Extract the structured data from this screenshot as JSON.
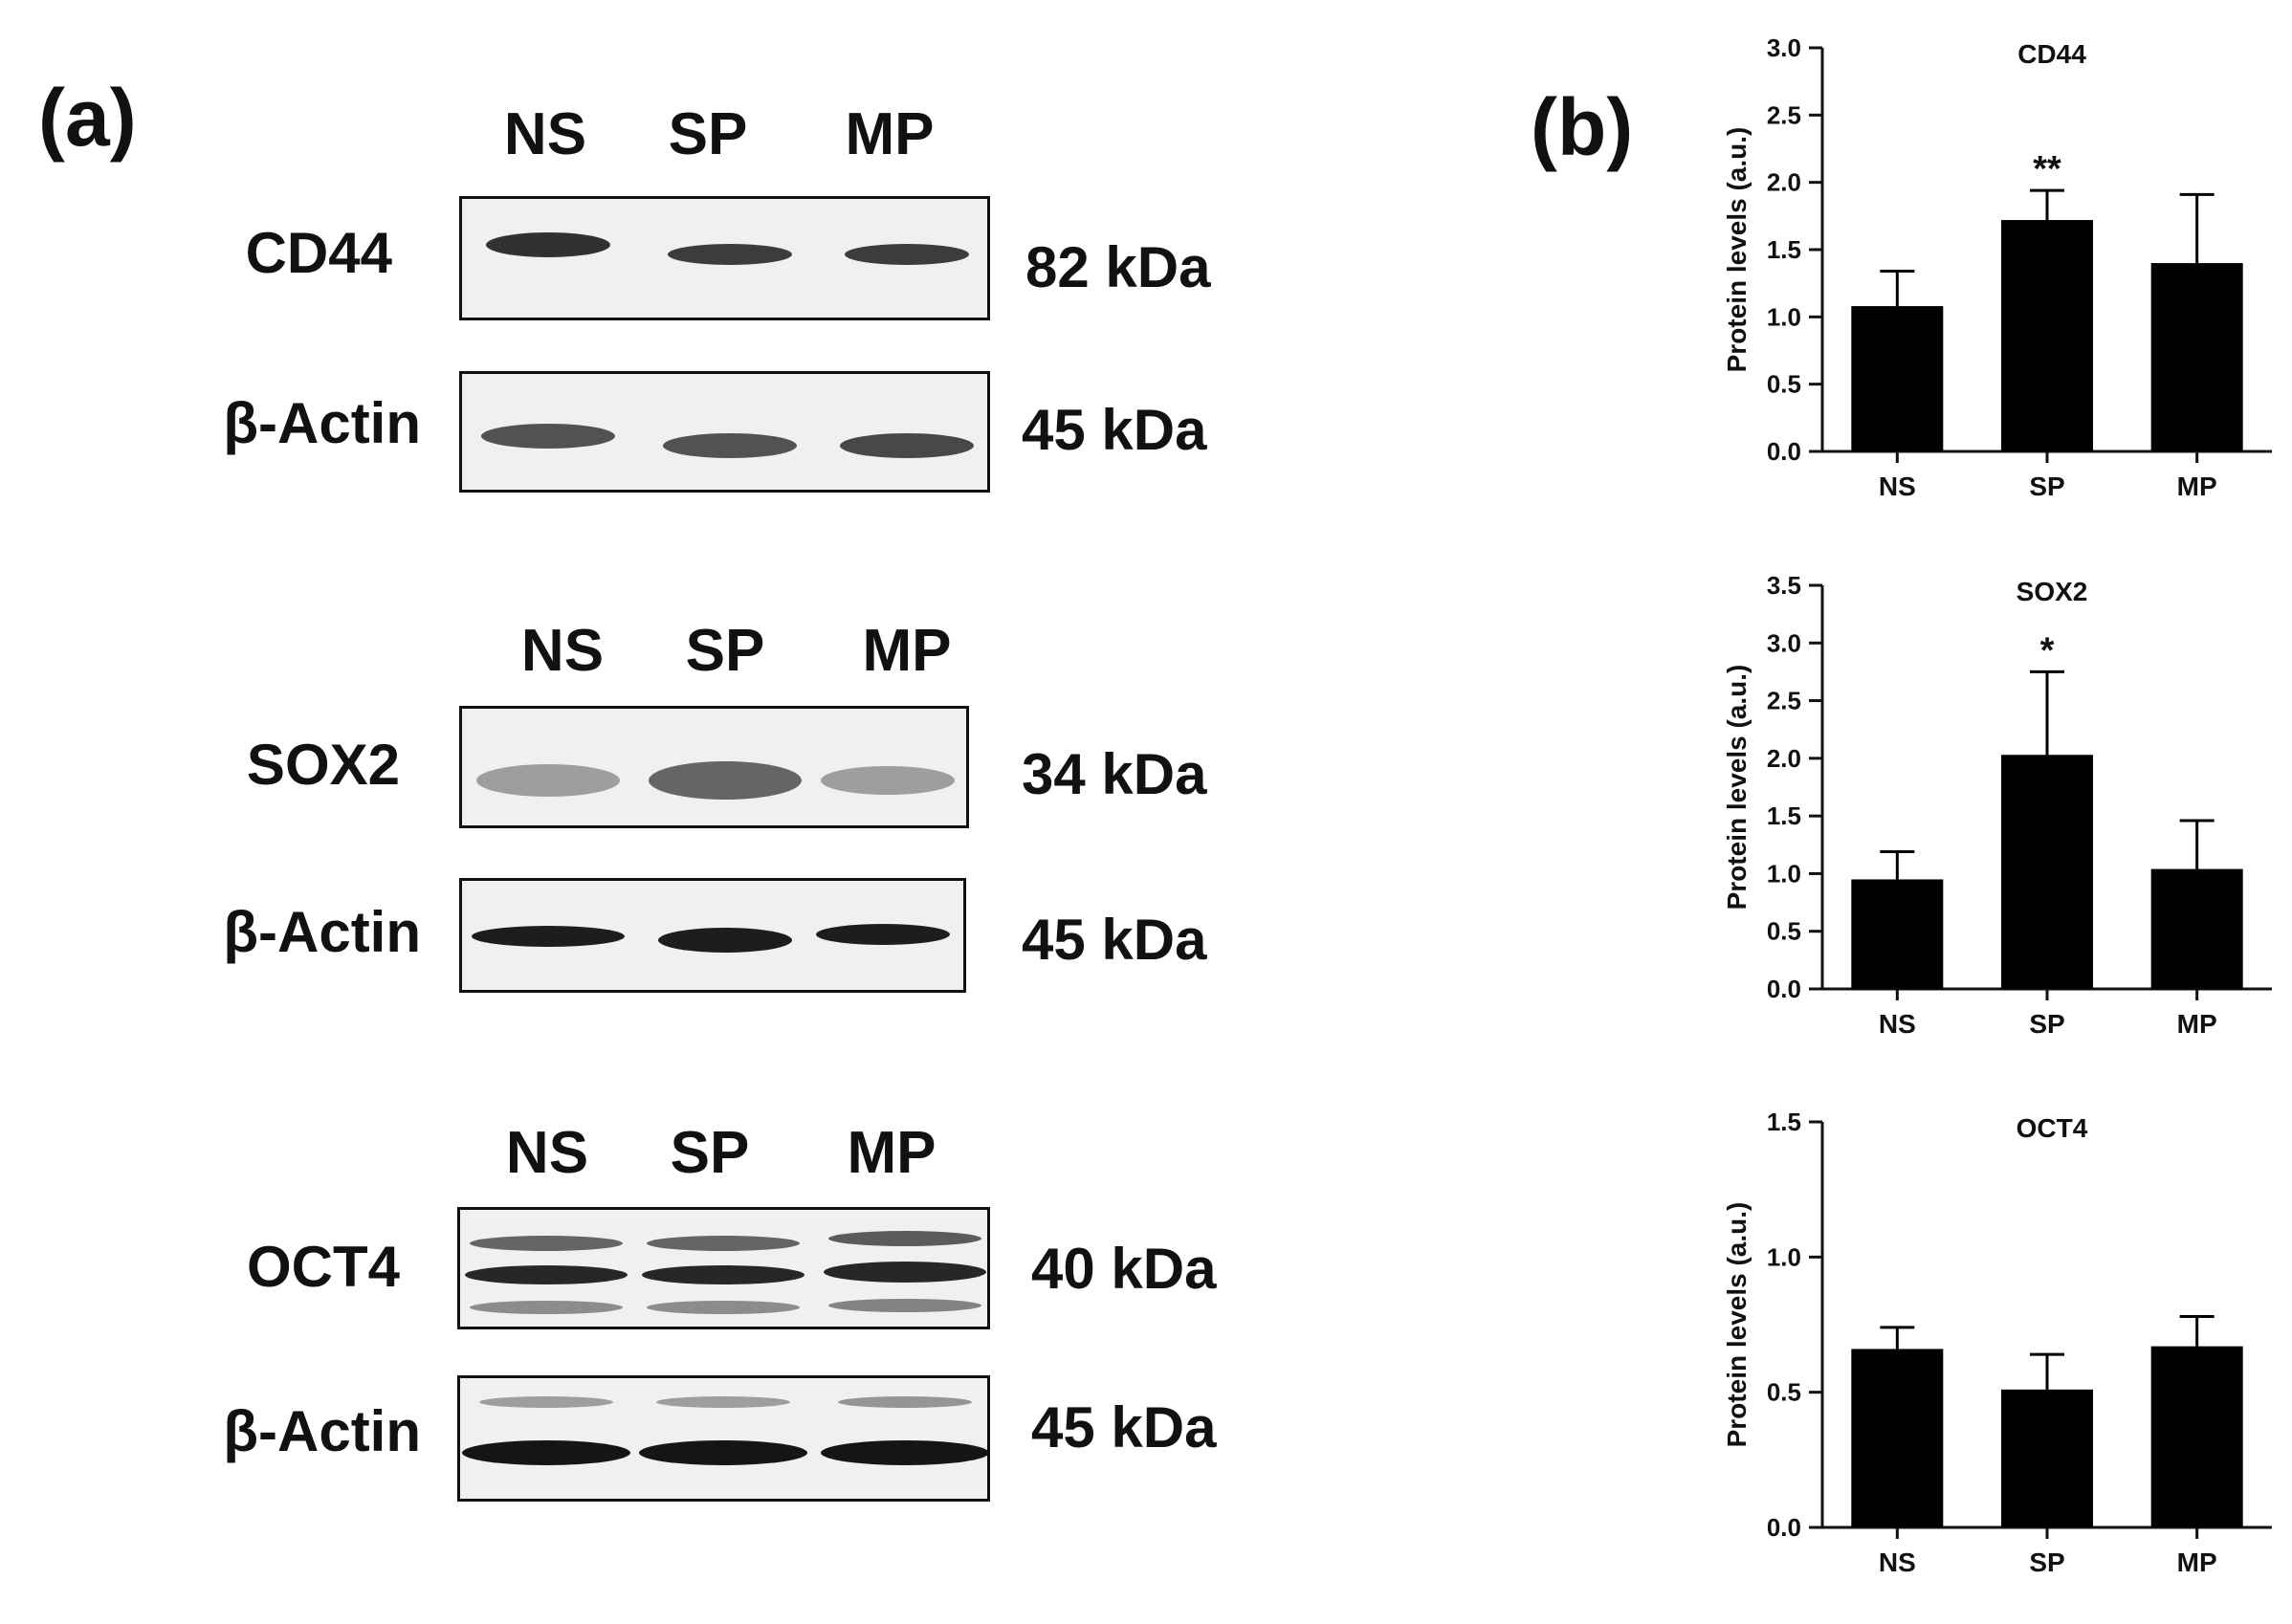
{
  "panel_a": {
    "label": "(a)",
    "blot_groups": [
      {
        "lanes": [
          "NS",
          "SP",
          "MP"
        ],
        "target": {
          "label": "CD44",
          "kda": "82 kDa"
        },
        "control": {
          "label": "β-Actin",
          "kda": "45 kDa"
        }
      },
      {
        "lanes": [
          "NS",
          "SP",
          "MP"
        ],
        "target": {
          "label": "SOX2",
          "kda": "34 kDa"
        },
        "control": {
          "label": "β-Actin",
          "kda": "45 kDa"
        }
      },
      {
        "lanes": [
          "NS",
          "SP",
          "MP"
        ],
        "target": {
          "label": "OCT4",
          "kda": "40 kDa"
        },
        "control": {
          "label": "β-Actin",
          "kda": "45 kDa"
        }
      }
    ]
  },
  "panel_b": {
    "label": "(b)"
  },
  "colors": {
    "bar": "#000000",
    "axis": "#111111",
    "blot_bg": "#efefef",
    "band": "#1c1c1c"
  },
  "chart_data": [
    {
      "type": "bar",
      "title": "CD44",
      "ylabel": "Protein levels (a.u.)",
      "categories": [
        "NS",
        "SP",
        "MP"
      ],
      "values": [
        1.08,
        1.72,
        1.4
      ],
      "errors": [
        0.26,
        0.22,
        0.51
      ],
      "annotations": [
        "",
        "**",
        ""
      ],
      "ylim": [
        0,
        3.0
      ],
      "yticks": [
        0.0,
        0.5,
        1.0,
        1.5,
        2.0,
        2.5,
        3.0
      ],
      "ytick_labels": [
        "0.0",
        "0.5",
        "1.0",
        "1.5",
        "2.0",
        "2.5",
        "3.0"
      ]
    },
    {
      "type": "bar",
      "title": "SOX2",
      "ylabel": "Protein levels (a.u.)",
      "categories": [
        "NS",
        "SP",
        "MP"
      ],
      "values": [
        0.95,
        2.03,
        1.04
      ],
      "errors": [
        0.24,
        0.72,
        0.42
      ],
      "annotations": [
        "",
        "*",
        ""
      ],
      "ylim": [
        0,
        3.5
      ],
      "yticks": [
        0.0,
        0.5,
        1.0,
        1.5,
        2.0,
        2.5,
        3.0,
        3.5
      ],
      "ytick_labels": [
        "0.0",
        "0.5",
        "1.0",
        "1.5",
        "2.0",
        "2.5",
        "3.0",
        "3.5"
      ]
    },
    {
      "type": "bar",
      "title": "OCT4",
      "ylabel": "Protein levels (a.u.)",
      "categories": [
        "NS",
        "SP",
        "MP"
      ],
      "values": [
        0.66,
        0.51,
        0.67
      ],
      "errors": [
        0.08,
        0.13,
        0.11
      ],
      "annotations": [
        "",
        "",
        ""
      ],
      "ylim": [
        0,
        1.5
      ],
      "yticks": [
        0.0,
        0.5,
        1.0,
        1.5
      ],
      "ytick_labels": [
        "0.0",
        "0.5",
        "1.0",
        "1.5"
      ]
    }
  ]
}
